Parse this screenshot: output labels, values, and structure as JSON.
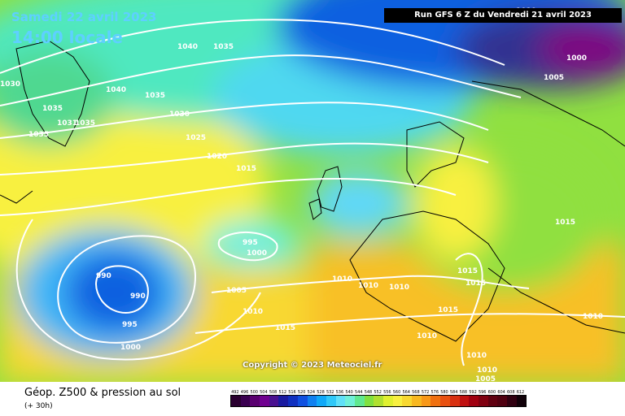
{
  "header": {
    "date": "Samedi 22 avril 2023",
    "time": "14:00 locale",
    "run": "Run GFS 6 Z du Vendredi 21 avril 2023"
  },
  "copyright": "Copyright © 2023 Meteociel.fr",
  "footer": {
    "title": "Géop. Z500 & pression au sol",
    "subtitle": "(+ 30h)"
  },
  "scale": {
    "labels": [
      "492",
      "496",
      "500",
      "504",
      "508",
      "512",
      "516",
      "520",
      "524",
      "528",
      "532",
      "536",
      "540",
      "544",
      "548",
      "552",
      "556",
      "560",
      "564",
      "568",
      "572",
      "576",
      "580",
      "584",
      "588",
      "592",
      "596",
      "600",
      "604",
      "608",
      "612"
    ],
    "colors": [
      "#2a0030",
      "#3a0050",
      "#5a0070",
      "#700090",
      "#4a1090",
      "#1a1aa0",
      "#1030c0",
      "#1050e0",
      "#1080f0",
      "#10a8f8",
      "#30c8f8",
      "#60e0f8",
      "#70f0d8",
      "#60e890",
      "#80e040",
      "#b0e030",
      "#e0f030",
      "#f8f040",
      "#f8d830",
      "#f8b820",
      "#f89818",
      "#f07010",
      "#e85010",
      "#d83010",
      "#c01010",
      "#a00010",
      "#800010",
      "#600010",
      "#500010",
      "#300010",
      "#100008"
    ]
  },
  "isobars": [
    "1040",
    "1035",
    "1030",
    "1040",
    "1035",
    "1035",
    "1031",
    "1035",
    "1035",
    "1030",
    "1025",
    "1020",
    "1015",
    "1000",
    "995",
    "990",
    "990",
    "995",
    "1000",
    "1005",
    "1010",
    "1015",
    "1010",
    "1010",
    "1010",
    "1015",
    "1015",
    "1015",
    "1010",
    "1010",
    "1010",
    "1005",
    "1000",
    "1005",
    "1010",
    "1015",
    "1010"
  ]
}
